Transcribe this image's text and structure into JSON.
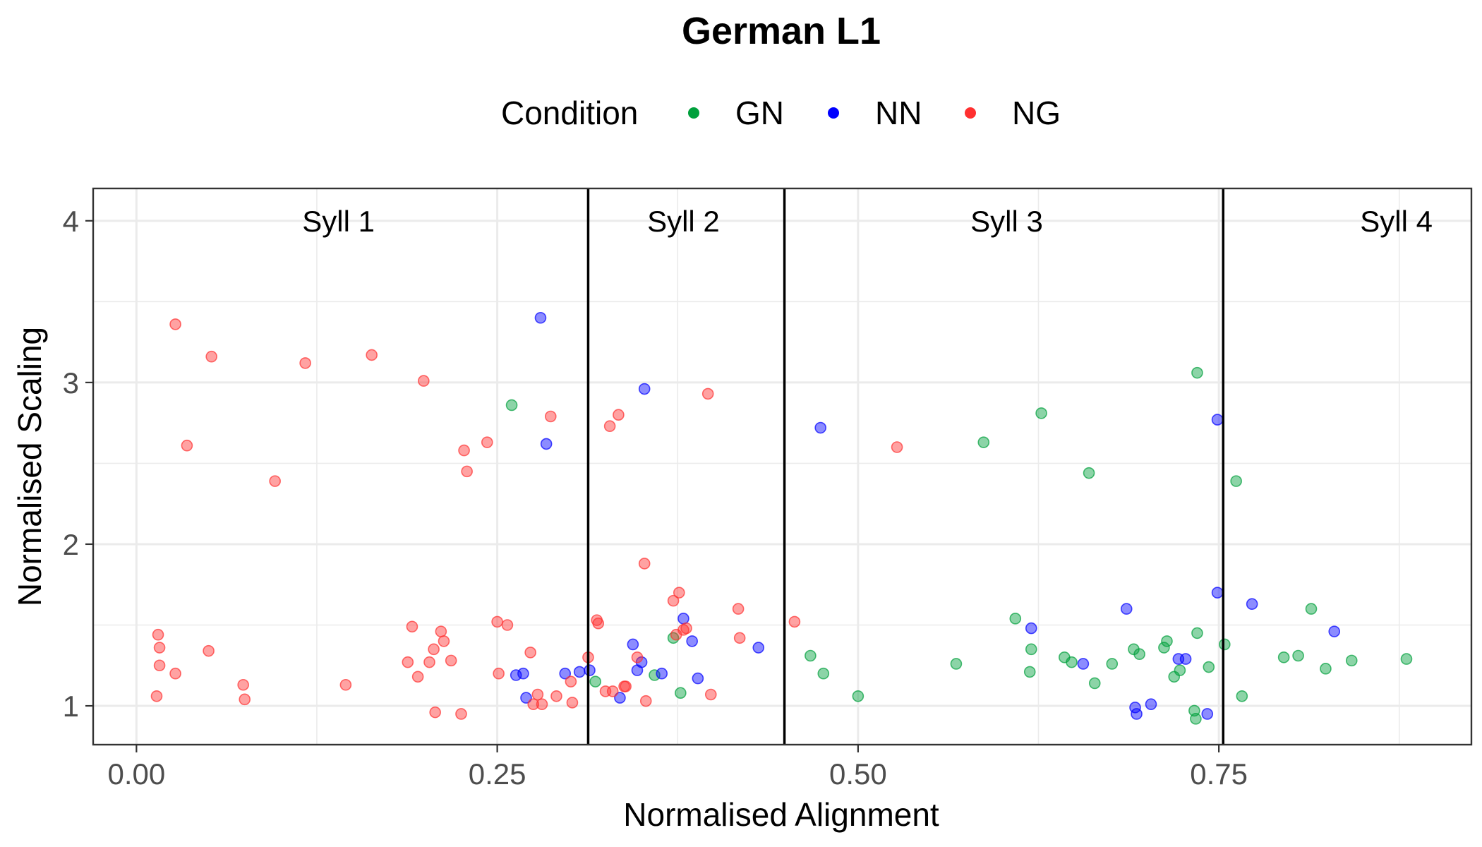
{
  "chart_data": {
    "type": "scatter",
    "title": "German L1",
    "xlabel": "Normalised Alignment",
    "ylabel": "Normalised Scaling",
    "xlim": [
      -0.03,
      0.925
    ],
    "ylim": [
      0.76,
      4.2
    ],
    "x_ticks": [
      0.0,
      0.25,
      0.5,
      0.75
    ],
    "x_tick_labels": [
      "0.00",
      "0.25",
      "0.50",
      "0.75"
    ],
    "y_ticks": [
      1,
      2,
      3,
      4
    ],
    "y_tick_labels": [
      "1",
      "2",
      "3",
      "4"
    ],
    "grid": true,
    "legend": {
      "title": "Condition",
      "placement": "top",
      "entries": [
        "GN",
        "NN",
        "NG"
      ]
    },
    "syllable_boundaries": [
      0.313,
      0.449,
      0.753
    ],
    "syllable_labels": [
      {
        "label": "Syll 1",
        "x": 0.14
      },
      {
        "label": "Syll 2",
        "x": 0.379
      },
      {
        "label": "Syll 3",
        "x": 0.603
      },
      {
        "label": "Syll 4",
        "x": 0.873
      }
    ],
    "series": [
      {
        "name": "GN",
        "color": "#00a03c",
        "points": [
          [
            0.26,
            2.86
          ],
          [
            0.318,
            1.15
          ],
          [
            0.372,
            1.42
          ],
          [
            0.377,
            1.08
          ],
          [
            0.359,
            1.19
          ],
          [
            0.467,
            1.31
          ],
          [
            0.476,
            1.2
          ],
          [
            0.5,
            1.06
          ],
          [
            0.568,
            1.26
          ],
          [
            0.587,
            2.63
          ],
          [
            0.609,
            1.54
          ],
          [
            0.619,
            1.21
          ],
          [
            0.62,
            1.35
          ],
          [
            0.627,
            2.81
          ],
          [
            0.643,
            1.3
          ],
          [
            0.648,
            1.27
          ],
          [
            0.66,
            2.44
          ],
          [
            0.664,
            1.14
          ],
          [
            0.676,
            1.26
          ],
          [
            0.691,
            1.35
          ],
          [
            0.695,
            1.32
          ],
          [
            0.712,
            1.36
          ],
          [
            0.714,
            1.4
          ],
          [
            0.719,
            1.18
          ],
          [
            0.723,
            1.22
          ],
          [
            0.733,
            0.97
          ],
          [
            0.734,
            0.92
          ],
          [
            0.735,
            1.45
          ],
          [
            0.735,
            3.06
          ],
          [
            0.743,
            1.24
          ],
          [
            0.754,
            1.38
          ],
          [
            0.762,
            2.39
          ],
          [
            0.766,
            1.06
          ],
          [
            0.795,
            1.3
          ],
          [
            0.805,
            1.31
          ],
          [
            0.814,
            1.6
          ],
          [
            0.824,
            1.23
          ],
          [
            0.842,
            1.28
          ],
          [
            0.88,
            1.29
          ]
        ]
      },
      {
        "name": "NN",
        "color": "#0000ff",
        "points": [
          [
            0.28,
            3.4
          ],
          [
            0.284,
            2.62
          ],
          [
            0.263,
            1.19
          ],
          [
            0.268,
            1.2
          ],
          [
            0.27,
            1.05
          ],
          [
            0.297,
            1.2
          ],
          [
            0.307,
            1.21
          ],
          [
            0.314,
            1.22
          ],
          [
            0.335,
            1.05
          ],
          [
            0.344,
            1.38
          ],
          [
            0.347,
            1.22
          ],
          [
            0.35,
            1.27
          ],
          [
            0.352,
            2.96
          ],
          [
            0.364,
            1.2
          ],
          [
            0.379,
            1.54
          ],
          [
            0.385,
            1.4
          ],
          [
            0.389,
            1.17
          ],
          [
            0.431,
            1.36
          ],
          [
            0.474,
            2.72
          ],
          [
            0.62,
            1.48
          ],
          [
            0.656,
            1.26
          ],
          [
            0.686,
            1.6
          ],
          [
            0.692,
            0.99
          ],
          [
            0.693,
            0.95
          ],
          [
            0.703,
            1.01
          ],
          [
            0.722,
            1.29
          ],
          [
            0.727,
            1.29
          ],
          [
            0.742,
            0.95
          ],
          [
            0.749,
            2.77
          ],
          [
            0.749,
            1.7
          ],
          [
            0.773,
            1.63
          ],
          [
            0.83,
            1.46
          ]
        ]
      },
      {
        "name": "NG",
        "color": "#ff3030",
        "points": [
          [
            0.027,
            3.36
          ],
          [
            0.052,
            3.16
          ],
          [
            0.035,
            2.61
          ],
          [
            0.015,
            1.44
          ],
          [
            0.016,
            1.36
          ],
          [
            0.016,
            1.25
          ],
          [
            0.027,
            1.2
          ],
          [
            0.014,
            1.06
          ],
          [
            0.05,
            1.34
          ],
          [
            0.074,
            1.13
          ],
          [
            0.075,
            1.04
          ],
          [
            0.096,
            2.39
          ],
          [
            0.117,
            3.12
          ],
          [
            0.145,
            1.13
          ],
          [
            0.163,
            3.17
          ],
          [
            0.188,
            1.27
          ],
          [
            0.191,
            1.49
          ],
          [
            0.195,
            1.18
          ],
          [
            0.199,
            3.01
          ],
          [
            0.203,
            1.27
          ],
          [
            0.206,
            1.35
          ],
          [
            0.207,
            0.96
          ],
          [
            0.211,
            1.46
          ],
          [
            0.213,
            1.4
          ],
          [
            0.218,
            1.28
          ],
          [
            0.225,
            0.95
          ],
          [
            0.227,
            2.58
          ],
          [
            0.229,
            2.45
          ],
          [
            0.243,
            2.63
          ],
          [
            0.25,
            1.52
          ],
          [
            0.251,
            1.2
          ],
          [
            0.257,
            1.5
          ],
          [
            0.273,
            1.33
          ],
          [
            0.275,
            1.01
          ],
          [
            0.278,
            1.07
          ],
          [
            0.281,
            1.01
          ],
          [
            0.287,
            2.79
          ],
          [
            0.291,
            1.06
          ],
          [
            0.301,
            1.15
          ],
          [
            0.302,
            1.02
          ],
          [
            0.313,
            1.3
          ],
          [
            0.319,
            1.53
          ],
          [
            0.32,
            1.51
          ],
          [
            0.325,
            1.09
          ],
          [
            0.328,
            2.73
          ],
          [
            0.33,
            1.09
          ],
          [
            0.334,
            2.8
          ],
          [
            0.338,
            1.12
          ],
          [
            0.339,
            1.12
          ],
          [
            0.347,
            1.3
          ],
          [
            0.352,
            1.88
          ],
          [
            0.353,
            1.03
          ],
          [
            0.372,
            1.65
          ],
          [
            0.374,
            1.44
          ],
          [
            0.376,
            1.7
          ],
          [
            0.379,
            1.47
          ],
          [
            0.381,
            1.48
          ],
          [
            0.396,
            2.93
          ],
          [
            0.398,
            1.07
          ],
          [
            0.417,
            1.6
          ],
          [
            0.418,
            1.42
          ],
          [
            0.456,
            1.52
          ],
          [
            0.527,
            2.6
          ]
        ]
      }
    ]
  }
}
